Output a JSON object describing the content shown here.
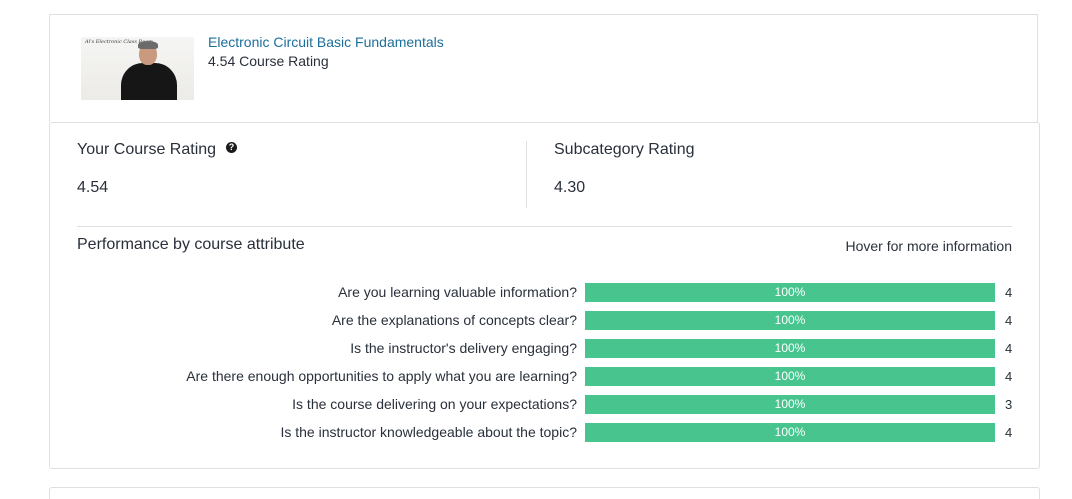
{
  "course": {
    "thumbnail_caption": "Al's Electronic Class Room",
    "title": "Electronic Circuit Basic Fundamentals",
    "rating_text": "4.54 Course Rating"
  },
  "ratings": {
    "your_label": "Your Course Rating",
    "help_icon": "question-circle-icon",
    "your_value": "4.54",
    "subcategory_label": "Subcategory Rating",
    "subcategory_value": "4.30"
  },
  "performance": {
    "title": "Performance by course attribute",
    "hover_hint": "Hover for more information",
    "bar_color": "#48c58f",
    "attributes": [
      {
        "question": "Are you learning valuable information?",
        "percent_label": "100%",
        "percent": 100,
        "count": "4"
      },
      {
        "question": "Are the explanations of concepts clear?",
        "percent_label": "100%",
        "percent": 100,
        "count": "4"
      },
      {
        "question": "Is the instructor's delivery engaging?",
        "percent_label": "100%",
        "percent": 100,
        "count": "4"
      },
      {
        "question": "Are there enough opportunities to apply what you are learning?",
        "percent_label": "100%",
        "percent": 100,
        "count": "4"
      },
      {
        "question": "Is the course delivering on your expectations?",
        "percent_label": "100%",
        "percent": 100,
        "count": "3"
      },
      {
        "question": "Is the instructor knowledgeable about the topic?",
        "percent_label": "100%",
        "percent": 100,
        "count": "4"
      }
    ]
  }
}
